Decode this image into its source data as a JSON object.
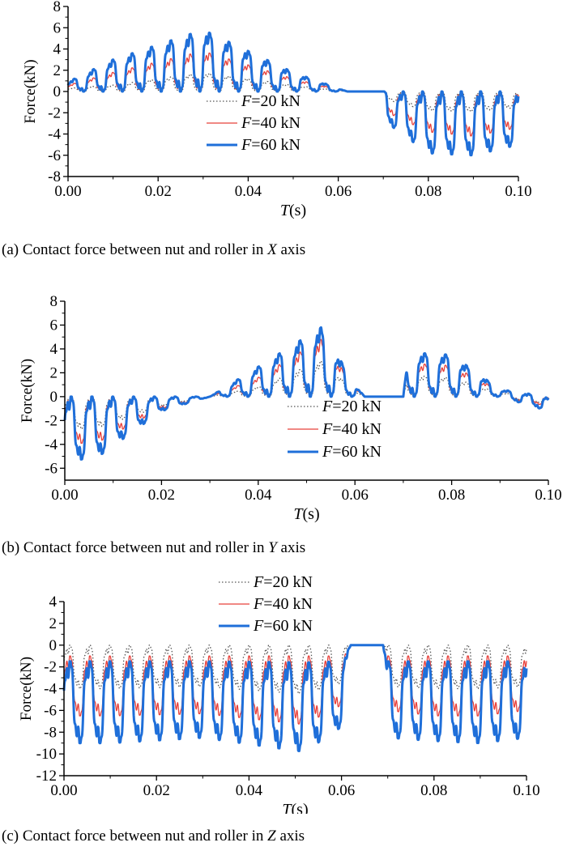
{
  "colors": {
    "s20": "#555555",
    "s40": "#e8403a",
    "s60": "#1f6fd9",
    "axis": "#000000"
  },
  "legend_entries": [
    {
      "var": "F",
      "rest": "=20 kN",
      "color": "#555555",
      "style": "dotted"
    },
    {
      "var": "F",
      "rest": "=40 kN",
      "color": "#e8403a",
      "style": "thin"
    },
    {
      "var": "F",
      "rest": "=60 kN",
      "color": "#1f6fd9",
      "style": "thick"
    }
  ],
  "chart_data": [
    {
      "type": "line",
      "panel": "a",
      "caption": {
        "prefix": "(a) Contact force between nut and roller in ",
        "axis_var": "X",
        "suffix": " axis"
      },
      "xlabel_var": "T",
      "xlabel_unit": "(s)",
      "ylabel": "Force(kN)",
      "xlim": [
        0,
        0.1
      ],
      "ylim": [
        -8,
        8
      ],
      "xticks": [
        "0.00",
        "0.02",
        "0.04",
        "0.06",
        "0.08",
        "0.10"
      ],
      "yticks": [
        "-8",
        "-6",
        "-4",
        "-2",
        "0",
        "2",
        "4",
        "6",
        "8"
      ],
      "legend_position": "center",
      "oscillation_period_s": 0.0043,
      "series": [
        {
          "name": "F=20 kN",
          "envelope": {
            "x": [
              0,
              0.01,
              0.03,
              0.05,
              0.06,
              0.062,
              0.07,
              0.071,
              0.08,
              0.09,
              0.1
            ],
            "max": [
              0.3,
              0.6,
              1.8,
              0.6,
              0.1,
              0,
              0,
              0,
              0,
              0,
              0
            ],
            "min": [
              0,
              0,
              0,
              0,
              0,
              0,
              0,
              -0.8,
              -1.8,
              -1.9,
              -1.5
            ]
          }
        },
        {
          "name": "F=40 kN",
          "envelope": {
            "x": [
              0,
              0.01,
              0.03,
              0.05,
              0.06,
              0.062,
              0.07,
              0.071,
              0.08,
              0.09,
              0.1
            ],
            "max": [
              0.6,
              1.8,
              3.8,
              1.2,
              0.2,
              0,
              0,
              0,
              0,
              0,
              0
            ],
            "min": [
              0,
              0,
              0,
              0,
              0,
              0,
              0,
              -2,
              -3.8,
              -4.2,
              -3.4
            ]
          }
        },
        {
          "name": "F=60 kN",
          "envelope": {
            "x": [
              0,
              0.01,
              0.03,
              0.05,
              0.06,
              0.062,
              0.07,
              0.071,
              0.08,
              0.09,
              0.1
            ],
            "max": [
              0.9,
              3,
              5.8,
              1.8,
              0.3,
              0,
              0,
              0,
              0,
              0,
              0
            ],
            "min": [
              0,
              0,
              0,
              0,
              0,
              0,
              0,
              -3,
              -5.8,
              -6,
              -5
            ]
          }
        }
      ]
    },
    {
      "type": "line",
      "panel": "b",
      "caption": {
        "prefix": "(b) Contact force between nut and roller in ",
        "axis_var": "Y",
        "suffix": " axis"
      },
      "xlabel_var": "T",
      "xlabel_unit": "(s)",
      "ylabel": "Force(kN)",
      "xlim": [
        0,
        0.1
      ],
      "ylim": [
        -7,
        8
      ],
      "xticks": [
        "0.00",
        "0.02",
        "0.04",
        "0.06",
        "0.08",
        "0.10"
      ],
      "yticks": [
        "-6",
        "-4",
        "-2",
        "0",
        "2",
        "4",
        "6",
        "8"
      ],
      "legend_position": "bottom-center",
      "oscillation_period_s": 0.0043,
      "series": [
        {
          "name": "F=20 kN",
          "envelope": {
            "x": [
              0,
              0.007,
              0.02,
              0.03,
              0.04,
              0.053,
              0.06,
              0.062,
              0.07,
              0.071,
              0.08,
              0.09,
              0.1
            ],
            "max": [
              0,
              0,
              0,
              0,
              0.8,
              3,
              0.5,
              0,
              0,
              1.8,
              1.6,
              0.3,
              0
            ],
            "min": [
              -2.8,
              -2.6,
              -0.8,
              0,
              0,
              0,
              0,
              0,
              0,
              0,
              0,
              0,
              -0.6
            ]
          }
        },
        {
          "name": "F=40 kN",
          "envelope": {
            "x": [
              0,
              0.007,
              0.02,
              0.03,
              0.04,
              0.053,
              0.06,
              0.062,
              0.07,
              0.071,
              0.08,
              0.09,
              0.1
            ],
            "max": [
              0,
              0,
              0,
              0,
              1.6,
              4.8,
              0.8,
              0,
              0,
              2.8,
              2.6,
              0.5,
              0
            ],
            "min": [
              -4,
              -3.8,
              -1,
              0,
              0,
              0,
              0,
              0,
              0,
              0,
              0,
              0,
              -0.8
            ]
          }
        },
        {
          "name": "F=60 kN",
          "envelope": {
            "x": [
              0,
              0.007,
              0.02,
              0.03,
              0.04,
              0.053,
              0.06,
              0.062,
              0.07,
              0.071,
              0.08,
              0.09,
              0.1
            ],
            "max": [
              0,
              0,
              0,
              0,
              2.5,
              5.8,
              1,
              0,
              0,
              3.7,
              3.5,
              0.6,
              0
            ],
            "min": [
              -5.5,
              -5,
              -1.2,
              0,
              0,
              0,
              0,
              0,
              0,
              0,
              0,
              0,
              -1.2
            ]
          }
        }
      ]
    },
    {
      "type": "line",
      "panel": "c",
      "caption": {
        "prefix": "(c) Contact force between nut and roller in ",
        "axis_var": "Z",
        "suffix": " axis"
      },
      "xlabel_var": "T",
      "xlabel_unit": "(s)",
      "ylabel": "Force(kN)",
      "xlim": [
        0,
        0.1
      ],
      "ylim": [
        -12,
        4
      ],
      "xticks": [
        "0.00",
        "0.02",
        "0.04",
        "0.06",
        "0.08",
        "0.10"
      ],
      "yticks": [
        "-12",
        "-10",
        "-8",
        "-6",
        "-4",
        "-2",
        "0",
        "2",
        "4"
      ],
      "legend_position": "top-center",
      "oscillation_period_s": 0.0043,
      "series": [
        {
          "name": "F=20 kN",
          "envelope": {
            "x": [
              0,
              0.01,
              0.03,
              0.052,
              0.06,
              0.062,
              0.069,
              0.07,
              0.08,
              0.09,
              0.1
            ],
            "max": [
              0,
              0,
              0,
              0,
              0,
              0,
              0,
              0,
              0,
              0,
              0
            ],
            "min": [
              -4,
              -4,
              -3.8,
              -4.5,
              -3.5,
              0,
              0,
              -3.8,
              -4,
              -4,
              -3.8
            ]
          }
        },
        {
          "name": "F=40 kN",
          "envelope": {
            "x": [
              0,
              0.01,
              0.03,
              0.052,
              0.06,
              0.062,
              0.069,
              0.07,
              0.08,
              0.09,
              0.1
            ],
            "max": [
              -1,
              -1,
              -1,
              -1,
              -1,
              0,
              0,
              -1,
              -1,
              -1,
              -1
            ],
            "min": [
              -6.5,
              -6.5,
              -6.3,
              -7.3,
              -5.5,
              0,
              0,
              -6,
              -6.5,
              -6.5,
              -6
            ]
          }
        },
        {
          "name": "F=60 kN",
          "envelope": {
            "x": [
              0,
              0.01,
              0.03,
              0.052,
              0.06,
              0.062,
              0.069,
              0.07,
              0.08,
              0.09,
              0.1
            ],
            "max": [
              -1.5,
              -1.5,
              -1.5,
              -1.6,
              -1.5,
              0,
              0,
              -1.5,
              -1.5,
              -1.5,
              -1.5
            ],
            "min": [
              -9,
              -9,
              -8.5,
              -9.8,
              -7.5,
              0,
              0,
              -8.5,
              -8.8,
              -9,
              -8.5
            ]
          }
        }
      ]
    }
  ]
}
